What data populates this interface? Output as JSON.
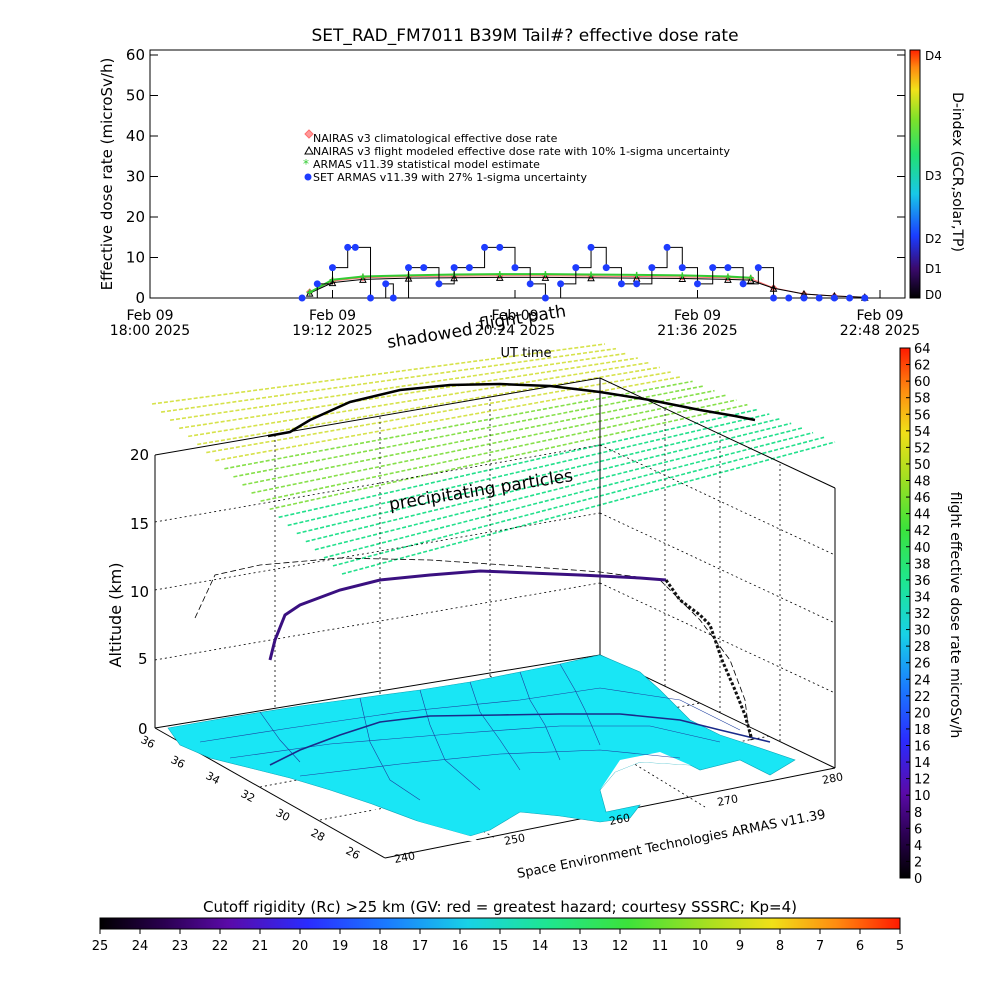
{
  "chart_data": [
    {
      "type": "line",
      "title": "SET_RAD_FM7011  B39M Tail#? effective dose rate",
      "ylabel": "Effective dose rate (microSv/h)",
      "ylim": [
        0,
        60
      ],
      "yticks": [
        "0",
        "10",
        "20",
        "30",
        "40",
        "50",
        "60"
      ],
      "xticks": [
        {
          "l1": "Feb 09",
          "l2": "18:00 2025"
        },
        {
          "l1": "Feb 09",
          "l2": "19:12 2025"
        },
        {
          "l1": "Feb 09",
          "l2": "20:24 2025"
        },
        {
          "l1": "Feb 09",
          "l2": "21:36 2025"
        },
        {
          "l1": "Feb 09",
          "l2": "22:48 2025"
        }
      ],
      "xlabel": "UT time",
      "xrange_hours": [
        18.0,
        22.8
      ],
      "legend": [
        "NAIRAS v3 climatological effective dose rate",
        "NAIRAS v3 flight modeled effective dose rate with 10% 1-sigma uncertainty",
        "ARMAS v11.39 statistical model estimate",
        "SET ARMAS v11.39 with 27% 1-sigma uncertainty"
      ],
      "right_axis": {
        "label": "D-index (GCR,solar,TP)",
        "ticks": [
          "D0",
          "D1",
          "D2",
          "D3",
          "D4"
        ]
      },
      "series": [
        {
          "name": "NAIRAS v3 climatological effective dose rate",
          "x": [
            19.05,
            19.2,
            19.4,
            19.7,
            20.0,
            20.3,
            20.6,
            20.9,
            21.2,
            21.5,
            21.8,
            21.95,
            22.1,
            22.3,
            22.5,
            22.7
          ],
          "values": [
            1.5,
            4.2,
            5.0,
            5.3,
            5.4,
            5.5,
            5.5,
            5.4,
            5.3,
            5.2,
            5.0,
            4.8,
            2.5,
            1.0,
            0.5,
            0.2
          ]
        },
        {
          "name": "NAIRAS v3 flight modeled effective dose rate with 10% 1-sigma uncertainty",
          "x": [
            19.05,
            19.2,
            19.4,
            19.7,
            20.0,
            20.3,
            20.6,
            20.9,
            21.2,
            21.5,
            21.8,
            21.95,
            22.1,
            22.3,
            22.5,
            22.7
          ],
          "values": [
            1.2,
            3.8,
            4.6,
            4.9,
            5.0,
            5.1,
            5.1,
            5.0,
            4.9,
            4.8,
            4.6,
            4.4,
            2.4,
            1.0,
            0.5,
            0.2
          ]
        },
        {
          "name": "ARMAS v11.39 statistical model estimate",
          "x": [
            19.05,
            19.2,
            19.4,
            19.7,
            20.0,
            20.3,
            20.6,
            20.9,
            21.2,
            21.5,
            21.8,
            21.95
          ],
          "values": [
            1.4,
            4.5,
            5.3,
            5.6,
            5.8,
            5.9,
            5.9,
            5.8,
            5.7,
            5.6,
            5.3,
            5.0
          ]
        },
        {
          "name": "SET ARMAS v11.39 with 27% 1-sigma uncertainty",
          "x": [
            19.0,
            19.1,
            19.2,
            19.3,
            19.35,
            19.45,
            19.55,
            19.6,
            19.7,
            19.8,
            19.9,
            20.0,
            20.1,
            20.2,
            20.3,
            20.4,
            20.5,
            20.6,
            20.7,
            20.8,
            20.9,
            21.0,
            21.1,
            21.2,
            21.3,
            21.4,
            21.5,
            21.6,
            21.7,
            21.8,
            21.9,
            22.0,
            22.1,
            22.2,
            22.3,
            22.4,
            22.5,
            22.6,
            22.7
          ],
          "values": [
            0,
            3.5,
            7.5,
            12.5,
            12.5,
            0,
            3.5,
            0,
            7.5,
            7.5,
            3.5,
            7.5,
            7.5,
            12.5,
            12.5,
            7.5,
            3.5,
            0,
            3.5,
            7.5,
            12.5,
            7.5,
            3.5,
            3.5,
            7.5,
            12.5,
            7.5,
            3.5,
            7.5,
            7.5,
            3.5,
            7.5,
            0,
            0,
            0,
            0,
            0,
            0,
            0
          ]
        }
      ],
      "colors": {
        "climatological": "#ff6f6f",
        "flight_model": "#000000",
        "statistical": "#33cc33",
        "set_armas": "#1e3cff"
      },
      "grid": false
    },
    {
      "type": "3d-map",
      "zlabel": "Altitude (km)",
      "zticks": [
        "0",
        "5",
        "10",
        "15",
        "20"
      ],
      "lat_ticks": [
        "36",
        "36",
        "34",
        "32",
        "30",
        "28",
        "26"
      ],
      "lon_ticks": [
        "240",
        "250",
        "260",
        "270",
        "280"
      ],
      "annotations": {
        "flight_path": "flight path",
        "shadowed": "shadowed",
        "precipitating": "precipitating particles",
        "credit": "Space Environment Technologies ARMAS v11.39",
        "ut_time": "UT time"
      },
      "colorbar_right": {
        "label": "flight effective dose rate microSv/h",
        "ticks": [
          "0",
          "2",
          "4",
          "6",
          "8",
          "10",
          "12",
          "14",
          "16",
          "18",
          "20",
          "22",
          "24",
          "26",
          "28",
          "30",
          "32",
          "34",
          "36",
          "38",
          "40",
          "42",
          "44",
          "46",
          "48",
          "50",
          "52",
          "54",
          "56",
          "58",
          "60",
          "62",
          "64"
        ]
      },
      "colorbar_bottom": {
        "label": "Cutoff rigidity (Rc) >25 km (GV: red = greatest hazard; courtesy SSSRC; Kp=4)",
        "ticks": [
          "25",
          "24",
          "23",
          "22",
          "21",
          "20",
          "19",
          "18",
          "17",
          "16",
          "15",
          "14",
          "13",
          "12",
          "11",
          "10",
          "9",
          "8",
          "7",
          "6",
          "5"
        ]
      },
      "map_color": "#19e6f5"
    }
  ]
}
